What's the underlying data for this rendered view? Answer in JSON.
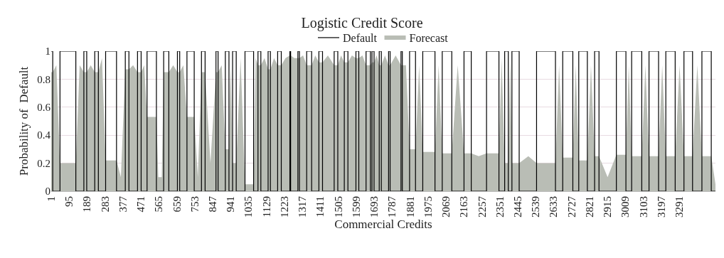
{
  "chart_data": {
    "type": "area",
    "title": "Logistic Credit Score",
    "xlabel": "Commercial Credits",
    "ylabel": "Probability of  Default",
    "xlim": [
      1,
      3480
    ],
    "xticks": [
      1,
      95,
      189,
      283,
      377,
      471,
      565,
      659,
      753,
      847,
      941,
      1035,
      1129,
      1223,
      1317,
      1411,
      1505,
      1599,
      1693,
      1787,
      1881,
      1975,
      2069,
      2163,
      2257,
      2351,
      2445,
      2539,
      2633,
      2727,
      2821,
      2915,
      3009,
      3103,
      3197,
      3291
    ],
    "ylim": [
      0,
      1
    ],
    "yticks": [
      0,
      0.2,
      0.4,
      0.6,
      0.8,
      1
    ],
    "grid": "y",
    "legend": "top",
    "marker": "none",
    "series": [
      {
        "name": "Default",
        "type": "step",
        "color": "#000000",
        "x": [
          1,
          9,
          47,
          130,
          172,
          187,
          229,
          248,
          286,
          343,
          389,
          408,
          453,
          472,
          503,
          552,
          590,
          617,
          662,
          674,
          712,
          750,
          788,
          807,
          864,
          875,
          913,
          932,
          951,
          970,
          1016,
          1061,
          1084,
          1099,
          1137,
          1149,
          1187,
          1206,
          1251,
          1255,
          1293,
          1301,
          1339,
          1365,
          1403,
          1422,
          1483,
          1502,
          1536,
          1555,
          1597,
          1612,
          1650,
          1673,
          1681,
          1692,
          1719,
          1730,
          1768,
          1776,
          1833,
          1840,
          1878,
          1909,
          1947,
          2011,
          2049,
          2099,
          2163,
          2201,
          2281,
          2346,
          2376,
          2395,
          2414,
          2452,
          2543,
          2642,
          2680,
          2733,
          2764,
          2809,
          2847,
          2870,
          2961,
          3011,
          3041,
          3094,
          3132,
          3182,
          3220,
          3269,
          3315,
          3360,
          3409,
          3458,
          3480
        ],
        "values": [
          1,
          0,
          1,
          0,
          1,
          0,
          1,
          0,
          1,
          0,
          1,
          0,
          1,
          0,
          1,
          0,
          1,
          0,
          1,
          0,
          1,
          0,
          1,
          0,
          1,
          0,
          1,
          0,
          1,
          0,
          1,
          0,
          1,
          0,
          1,
          0,
          1,
          0,
          1,
          0,
          1,
          0,
          1,
          0,
          1,
          0,
          1,
          0,
          1,
          0,
          1,
          0,
          1,
          0,
          1,
          0,
          1,
          0,
          1,
          0,
          1,
          0,
          1,
          0,
          1,
          0,
          1,
          0,
          1,
          0,
          1,
          0,
          1,
          0,
          1,
          0,
          1,
          0,
          1,
          0,
          1,
          0,
          1,
          0,
          1,
          0,
          1,
          0,
          1,
          0,
          1,
          0,
          1,
          0,
          1,
          0,
          0
        ]
      },
      {
        "name": "Forecast",
        "color": "#b9bdb5",
        "x": [
          1,
          9,
          28,
          47,
          130,
          150,
          172,
          187,
          208,
          229,
          248,
          267,
          286,
          343,
          366,
          389,
          408,
          430,
          453,
          472,
          488,
          503,
          552,
          562,
          580,
          590,
          617,
          640,
          662,
          674,
          693,
          712,
          750,
          769,
          788,
          807,
          835,
          864,
          875,
          894,
          913,
          932,
          941,
          951,
          970,
          993,
          1016,
          1061,
          1072,
          1084,
          1099,
          1118,
          1137,
          1149,
          1168,
          1187,
          1206,
          1228,
          1251,
          1255,
          1274,
          1293,
          1301,
          1320,
          1339,
          1365,
          1384,
          1403,
          1422,
          1450,
          1483,
          1502,
          1519,
          1536,
          1555,
          1576,
          1597,
          1612,
          1631,
          1650,
          1673,
          1681,
          1692,
          1705,
          1719,
          1730,
          1749,
          1768,
          1776,
          1805,
          1833,
          1840,
          1859,
          1878,
          1909,
          1928,
          1947,
          2011,
          2030,
          2049,
          2099,
          2130,
          2163,
          2201,
          2240,
          2281,
          2346,
          2360,
          2376,
          2395,
          2405,
          2414,
          2452,
          2500,
          2543,
          2642,
          2661,
          2680,
          2733,
          2748,
          2764,
          2809,
          2828,
          2847,
          2870,
          2915,
          2961,
          3011,
          3026,
          3041,
          3094,
          3113,
          3132,
          3182,
          3201,
          3220,
          3269,
          3292,
          3315,
          3360,
          3385,
          3409,
          3458,
          3480
        ],
        "values": [
          0.85,
          0.85,
          0.9,
          0.2,
          0.2,
          0.9,
          0.85,
          0.85,
          0.9,
          0.85,
          0.85,
          0.95,
          0.22,
          0.22,
          0.1,
          0.87,
          0.87,
          0.9,
          0.85,
          0.85,
          0.9,
          0.53,
          0.53,
          0.1,
          0.1,
          0.85,
          0.85,
          0.9,
          0.85,
          0.85,
          0.9,
          0.53,
          0.53,
          0.1,
          0.85,
          0.85,
          0.2,
          0.85,
          0.85,
          0.9,
          0.3,
          0.3,
          0.9,
          0.2,
          0.2,
          0.95,
          0.05,
          0.05,
          0.95,
          0.9,
          0.9,
          0.95,
          0.87,
          0.87,
          0.95,
          0.9,
          0.9,
          0.95,
          0.97,
          0.97,
          0.95,
          0.95,
          0.95,
          0.97,
          0.9,
          0.9,
          0.97,
          0.92,
          0.92,
          0.97,
          0.9,
          0.9,
          0.97,
          0.92,
          0.92,
          0.97,
          0.95,
          0.95,
          0.97,
          0.9,
          0.9,
          0.92,
          0.92,
          0.97,
          0.9,
          0.9,
          0.97,
          0.9,
          0.9,
          0.97,
          0.9,
          0.9,
          0.9,
          0.3,
          0.3,
          0.9,
          0.28,
          0.28,
          0.9,
          0.27,
          0.27,
          0.9,
          0.27,
          0.27,
          0.25,
          0.27,
          0.27,
          0.95,
          0.2,
          0.2,
          0.95,
          0.2,
          0.2,
          0.25,
          0.2,
          0.2,
          0.9,
          0.24,
          0.24,
          0.9,
          0.22,
          0.22,
          0.9,
          0.25,
          0.25,
          0.1,
          0.26,
          0.26,
          0.9,
          0.25,
          0.25,
          0.9,
          0.25,
          0.25,
          0.9,
          0.25,
          0.25,
          0.9,
          0.25,
          0.25,
          0.9,
          0.25,
          0.25,
          0.05
        ]
      }
    ]
  }
}
